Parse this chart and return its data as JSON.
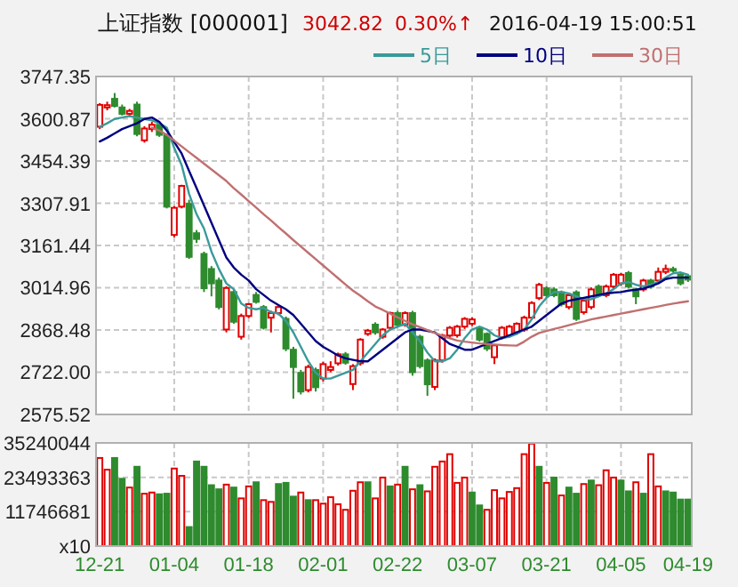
{
  "chart_data": [
    {
      "type": "candlestick",
      "title": "上证指数 [000001]",
      "annotations": [
        "3042.82",
        "0.30%↑",
        "2016-04-19 15:00:51"
      ],
      "categories": [
        null,
        null,
        null,
        null,
        null,
        null,
        null,
        null,
        null,
        null,
        null,
        null,
        null,
        null,
        null,
        null,
        null,
        null,
        null,
        null,
        null,
        null,
        null,
        null,
        null,
        null,
        null,
        null,
        null,
        null,
        null,
        null,
        null,
        null,
        null,
        null,
        null,
        null,
        null,
        null,
        null,
        null,
        null,
        null,
        null,
        null,
        null,
        null,
        null,
        null,
        null,
        null,
        null,
        null,
        null,
        null,
        null,
        null,
        null,
        null,
        null,
        null,
        null,
        null,
        null,
        null,
        null,
        null,
        null,
        null,
        null,
        null,
        null,
        null,
        null,
        null,
        null,
        null,
        null,
        null
      ],
      "tick_labels": "y",
      "grid": true,
      "legend": "top right",
      "ylim": [
        2575.52,
        3747.35
      ],
      "yticks": [
        2575.52,
        {
          "value": 2722.0,
          "label": "2722.00"
        },
        2868.48,
        3014.96,
        3161.44,
        3307.91,
        3454.39,
        3600.87,
        3747.35
      ],
      "ohlc": [
        [
          3573,
          3655,
          3565,
          3649
        ],
        [
          3640,
          3660,
          3630,
          3648
        ],
        [
          3670,
          3690,
          3640,
          3645
        ],
        [
          3640,
          3650,
          3612,
          3618
        ],
        [
          3618,
          3635,
          3610,
          3628
        ],
        [
          3650,
          3660,
          3540,
          3548
        ],
        [
          3526,
          3575,
          3518,
          3567
        ],
        [
          3565,
          3590,
          3555,
          3580
        ],
        [
          3580,
          3590,
          3538,
          3545
        ],
        [
          3545,
          3550,
          3290,
          3296
        ],
        [
          3198,
          3298,
          3190,
          3292
        ],
        [
          3296,
          3372,
          3290,
          3368
        ],
        [
          3306,
          3320,
          3115,
          3122
        ],
        [
          3204,
          3215,
          3170,
          3184
        ],
        [
          3132,
          3140,
          3000,
          3013
        ],
        [
          3080,
          3090,
          2985,
          3030
        ],
        [
          3040,
          3050,
          2940,
          2948
        ],
        [
          2870,
          3020,
          2860,
          3014
        ],
        [
          3000,
          3010,
          2890,
          2897
        ],
        [
          2845,
          2925,
          2835,
          2917
        ],
        [
          2917,
          2962,
          2910,
          2958
        ],
        [
          2990,
          3000,
          2960,
          2966
        ],
        [
          2948,
          2955,
          2870,
          2876
        ],
        [
          2911,
          2935,
          2860,
          2927
        ],
        [
          2927,
          2955,
          2920,
          2948
        ],
        [
          2907,
          2915,
          2795,
          2804
        ],
        [
          2800,
          2810,
          2630,
          2740
        ],
        [
          2720,
          2730,
          2645,
          2655
        ],
        [
          2660,
          2748,
          2652,
          2740
        ],
        [
          2730,
          2738,
          2655,
          2670
        ],
        [
          2700,
          2758,
          2690,
          2750
        ],
        [
          2730,
          2760,
          2722,
          2740
        ],
        [
          2753,
          2790,
          2745,
          2784
        ],
        [
          2784,
          2792,
          2748,
          2755
        ],
        [
          2681,
          2750,
          2660,
          2743
        ],
        [
          2753,
          2840,
          2745,
          2835
        ],
        [
          2855,
          2872,
          2848,
          2866
        ],
        [
          2887,
          2895,
          2852,
          2860
        ],
        [
          2845,
          2875,
          2838,
          2870
        ],
        [
          2876,
          2932,
          2868,
          2927
        ],
        [
          2927,
          2935,
          2880,
          2886
        ],
        [
          2886,
          2933,
          2880,
          2927
        ],
        [
          2927,
          2935,
          2710,
          2722
        ],
        [
          2845,
          2852,
          2735,
          2743
        ],
        [
          2763,
          2770,
          2640,
          2680
        ],
        [
          2671,
          2770,
          2660,
          2763
        ],
        [
          2763,
          2855,
          2755,
          2849
        ],
        [
          2849,
          2882,
          2840,
          2876
        ],
        [
          2850,
          2886,
          2842,
          2880
        ],
        [
          2880,
          2913,
          2872,
          2907
        ],
        [
          2890,
          2912,
          2882,
          2905
        ],
        [
          2876,
          2882,
          2828,
          2835
        ],
        [
          2855,
          2860,
          2795,
          2804
        ],
        [
          2774,
          2820,
          2750,
          2815
        ],
        [
          2843,
          2882,
          2836,
          2876
        ],
        [
          2850,
          2886,
          2842,
          2880
        ],
        [
          2860,
          2895,
          2852,
          2890
        ],
        [
          2870,
          2918,
          2862,
          2911
        ],
        [
          2911,
          2968,
          2904,
          2962
        ],
        [
          2979,
          3032,
          2972,
          3025
        ],
        [
          3013,
          3020,
          2982,
          2989
        ],
        [
          3009,
          3016,
          2982,
          2989
        ],
        [
          2999,
          3005,
          2950,
          2958
        ],
        [
          2948,
          2995,
          2940,
          2989
        ],
        [
          2999,
          3006,
          2900,
          2907
        ],
        [
          2930,
          2977,
          2922,
          2970
        ],
        [
          2948,
          3016,
          2940,
          3009
        ],
        [
          3019,
          3026,
          2982,
          2989
        ],
        [
          2989,
          3026,
          2982,
          3019
        ],
        [
          3019,
          3066,
          3012,
          3060
        ],
        [
          3030,
          3066,
          3022,
          3060
        ],
        [
          3066,
          3073,
          3012,
          3019
        ],
        [
          3009,
          3015,
          2958,
          2985
        ],
        [
          3009,
          3046,
          3002,
          3040
        ],
        [
          3040,
          3046,
          3012,
          3019
        ],
        [
          3040,
          3085,
          3033,
          3070
        ],
        [
          3070,
          3095,
          3062,
          3080
        ],
        [
          3080,
          3088,
          3068,
          3075
        ],
        [
          3060,
          3067,
          3023,
          3030
        ],
        [
          3055,
          3062,
          3035,
          3043
        ]
      ],
      "series": [
        {
          "name": "5日",
          "type": "line",
          "color": "#3a9a9a",
          "values": [
            3573,
            3585,
            3600,
            3605,
            3610,
            3605,
            3600,
            3595,
            3585,
            3570,
            3500,
            3440,
            3340,
            3270,
            3220,
            3140,
            3080,
            3030,
            3010,
            2960,
            2945,
            2940,
            2945,
            2930,
            2925,
            2900,
            2860,
            2810,
            2760,
            2720,
            2700,
            2700,
            2710,
            2720,
            2730,
            2760,
            2790,
            2820,
            2850,
            2870,
            2880,
            2890,
            2860,
            2830,
            2790,
            2760,
            2760,
            2770,
            2800,
            2840,
            2870,
            2880,
            2870,
            2850,
            2840,
            2845,
            2855,
            2870,
            2905,
            2950,
            2980,
            3000,
            3000,
            2995,
            2985,
            2975,
            2975,
            2985,
            2995,
            3010,
            3030,
            3035,
            3025,
            3020,
            3025,
            3035,
            3050,
            3065,
            3068,
            3060
          ]
        },
        {
          "name": "10日",
          "type": "line",
          "color": "#000080",
          "values": [
            3522,
            3535,
            3550,
            3565,
            3575,
            3585,
            3600,
            3605,
            3590,
            3560,
            3520,
            3480,
            3420,
            3360,
            3300,
            3240,
            3180,
            3120,
            3085,
            3060,
            3040,
            3010,
            2990,
            2970,
            2955,
            2940,
            2920,
            2890,
            2860,
            2830,
            2810,
            2795,
            2780,
            2770,
            2765,
            2760,
            2760,
            2780,
            2800,
            2820,
            2840,
            2860,
            2870,
            2870,
            2865,
            2860,
            2840,
            2820,
            2810,
            2800,
            2800,
            2810,
            2820,
            2830,
            2840,
            2850,
            2860,
            2870,
            2880,
            2900,
            2920,
            2940,
            2960,
            2970,
            2975,
            2980,
            2985,
            2990,
            2995,
            2998,
            3000,
            3005,
            3008,
            3012,
            3020,
            3030,
            3045,
            3050,
            3050,
            3050
          ]
        },
        {
          "name": "30日",
          "type": "line",
          "color": "#c07070",
          "values": [
            null,
            null,
            null,
            null,
            null,
            null,
            null,
            3570,
            3560,
            3545,
            3525,
            3505,
            3485,
            3465,
            3445,
            3425,
            3405,
            3385,
            3360,
            3338,
            3315,
            3293,
            3270,
            3248,
            3225,
            3203,
            3180,
            3158,
            3136,
            3114,
            3092,
            3070,
            3048,
            3026,
            3005,
            2987,
            2968,
            2950,
            2938,
            2925,
            2912,
            2900,
            2888,
            2878,
            2868,
            2858,
            2848,
            2840,
            2832,
            2828,
            2825,
            2822,
            2820,
            2818,
            2816,
            2815,
            2814,
            2828,
            2845,
            2858,
            2865,
            2872,
            2878,
            2885,
            2892,
            2898,
            2905,
            2910,
            2915,
            2920,
            2925,
            2930,
            2935,
            2940,
            2945,
            2950,
            2955,
            2960,
            2964,
            2968
          ]
        }
      ]
    },
    {
      "type": "bar",
      "categories": [
        "12-21",
        null,
        null,
        null,
        null,
        null,
        null,
        null,
        null,
        null,
        "01-04",
        null,
        null,
        null,
        null,
        null,
        null,
        null,
        null,
        null,
        "01-18",
        null,
        null,
        null,
        null,
        null,
        null,
        null,
        null,
        null,
        "02-01",
        null,
        null,
        null,
        null,
        null,
        null,
        null,
        null,
        null,
        "02-22",
        null,
        null,
        null,
        null,
        null,
        null,
        null,
        null,
        null,
        "03-07",
        null,
        null,
        null,
        null,
        null,
        null,
        null,
        null,
        null,
        "03-21",
        null,
        null,
        null,
        null,
        null,
        null,
        null,
        null,
        null,
        "04-05",
        null,
        null,
        null,
        null,
        null,
        null,
        null,
        null,
        "04-19"
      ],
      "grid": true,
      "ylim": [
        0,
        35240044
      ],
      "yticks": [
        {
          "value": 0,
          "label": "x10"
        },
        11746681,
        23493363,
        35240044
      ],
      "values": [
        30100000,
        26100000,
        30100000,
        23000000,
        20000000,
        27100000,
        17900000,
        18300000,
        17700000,
        17900000,
        26500000,
        24000000,
        6500000,
        28900000,
        27100000,
        20800000,
        19400000,
        21000000,
        20000000,
        16300000,
        20400000,
        21800000,
        15700000,
        15100000,
        21200000,
        21600000,
        16900000,
        18300000,
        15700000,
        15700000,
        14500000,
        16700000,
        14300000,
        12400000,
        18900000,
        21800000,
        21800000,
        16300000,
        23400000,
        20400000,
        21000000,
        27100000,
        19400000,
        20800000,
        18700000,
        27100000,
        28900000,
        31400000,
        21600000,
        23400000,
        18300000,
        13900000,
        12400000,
        19100000,
        16300000,
        18500000,
        19800000,
        31400000,
        35000000,
        27100000,
        21600000,
        23400000,
        17300000,
        20000000,
        17900000,
        21200000,
        22400000,
        20800000,
        25900000,
        23400000,
        22400000,
        18700000,
        21800000,
        17900000,
        31400000,
        20400000,
        18700000,
        18300000,
        15900000,
        15900000
      ],
      "colors": [
        "#e00000",
        "#e00000",
        "#2e8b2e",
        "#2e8b2e",
        "#e00000",
        "#2e8b2e",
        "#e00000",
        "#e00000",
        "#2e8b2e",
        "#2e8b2e",
        "#e00000",
        "#e00000",
        "#2e8b2e",
        "#2e8b2e",
        "#2e8b2e",
        "#2e8b2e",
        "#2e8b2e",
        "#e00000",
        "#2e8b2e",
        "#e00000",
        "#e00000",
        "#2e8b2e",
        "#e00000",
        "#e00000",
        "#2e8b2e",
        "#2e8b2e",
        "#2e8b2e",
        "#e00000",
        "#2e8b2e",
        "#e00000",
        "#e00000",
        "#e00000",
        "#e00000",
        "#e00000",
        "#e00000",
        "#e00000",
        "#2e8b2e",
        "#e00000",
        "#e00000",
        "#2e8b2e",
        "#e00000",
        "#2e8b2e",
        "#e00000",
        "#2e8b2e",
        "#e00000",
        "#e00000",
        "#e00000",
        "#e00000",
        "#e00000",
        "#e00000",
        "#2e8b2e",
        "#2e8b2e",
        "#e00000",
        "#e00000",
        "#e00000",
        "#e00000",
        "#e00000",
        "#e00000",
        "#e00000",
        "#2e8b2e",
        "#e00000",
        "#2e8b2e",
        "#e00000",
        "#2e8b2e",
        "#2e8b2e",
        "#e00000",
        "#2e8b2e",
        "#e00000",
        "#e00000",
        "#e00000",
        "#2e8b2e",
        "#2e8b2e",
        "#e00000",
        "#2e8b2e",
        "#e00000",
        "#e00000",
        "#2e8b2e",
        "#2e8b2e",
        "#2e8b2e",
        "#2e8b2e"
      ]
    }
  ]
}
